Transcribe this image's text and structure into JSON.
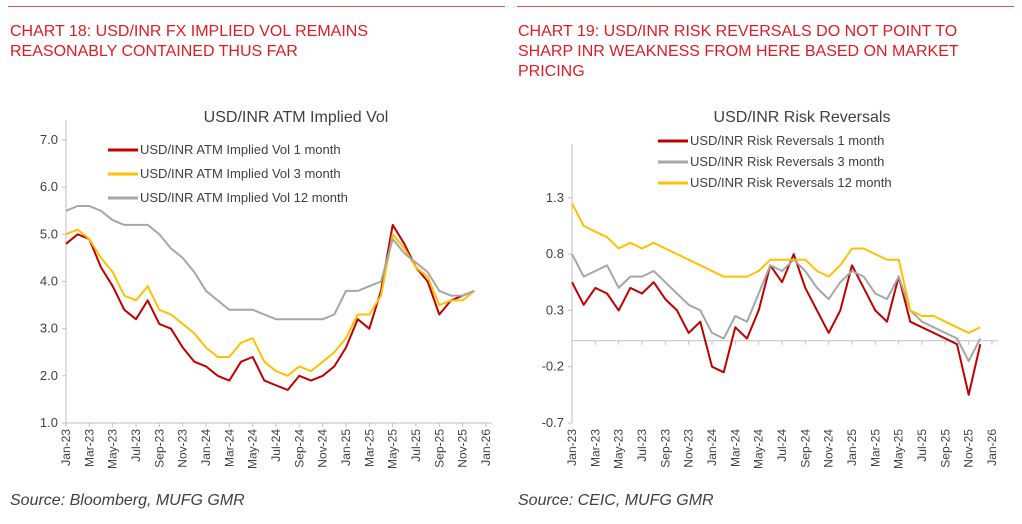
{
  "left_panel": {
    "heading": "CHART 18: USD/INR FX IMPLIED VOL REMAINS REASONABLY CONTAINED THUS FAR",
    "heading_lines": [
      "CHART 18: USD/INR FX IMPLIED VOL REMAINS",
      "REASONABLY CONTAINED THUS FAR"
    ],
    "source": "Source: Bloomberg, MUFG GMR"
  },
  "right_panel": {
    "heading": "CHART 19: USD/INR RISK REVERSALS DO NOT POINT TO SHARP INR WEAKNESS FROM HERE BASED ON MARKET PRICING",
    "heading_lines": [
      "CHART 19: USD/INR RISK REVERSALS DO NOT POINT TO",
      "SHARP INR WEAKNESS FROM HERE BASED ON MARKET",
      "PRICING"
    ],
    "source": "Source: CEIC, MUFG GMR"
  },
  "colors": {
    "heading": "#e01b24",
    "series_1m": "#c00000",
    "series_3m": "#ffc000",
    "series_12m": "#a6a6a6",
    "series_3m_rr": "#a6a6a6",
    "series_12m_rr": "#ffc000"
  },
  "chart_data": [
    {
      "type": "line",
      "title": "USD/INR ATM Implied Vol",
      "xlabel": "",
      "ylabel": "",
      "x_ticks": [
        "Jan-23",
        "Mar-23",
        "May-23",
        "Jul-23",
        "Sep-23",
        "Nov-23",
        "Jan-24",
        "Mar-24",
        "May-24",
        "Jul-24",
        "Sep-24",
        "Nov-24",
        "Jan-25",
        "Mar-25",
        "May-25",
        "Jul-25",
        "Sep-25",
        "Nov-25",
        "Jan-26"
      ],
      "y_ticks": [
        "1.0",
        "2.0",
        "3.0",
        "4.0",
        "5.0",
        "6.0",
        "7.0"
      ],
      "ylim": [
        1.0,
        7.0
      ],
      "grid": false,
      "legend_position": "top-right",
      "x": [
        "2023-01",
        "2023-02",
        "2023-03",
        "2023-04",
        "2023-05",
        "2023-06",
        "2023-07",
        "2023-08",
        "2023-09",
        "2023-10",
        "2023-11",
        "2023-12",
        "2024-01",
        "2024-02",
        "2024-03",
        "2024-04",
        "2024-05",
        "2024-06",
        "2024-07",
        "2024-08",
        "2024-09",
        "2024-10",
        "2024-11",
        "2024-12",
        "2025-01",
        "2025-02",
        "2025-03",
        "2025-04",
        "2025-05",
        "2025-06",
        "2025-07",
        "2025-08",
        "2025-09",
        "2025-10",
        "2025-11",
        "2025-12"
      ],
      "series": [
        {
          "name": "USD/INR ATM Implied Vol 1 month",
          "color": "#c00000",
          "values": [
            4.8,
            5.0,
            4.9,
            4.3,
            3.9,
            3.4,
            3.2,
            3.6,
            3.1,
            3.0,
            2.6,
            2.3,
            2.2,
            2.0,
            1.9,
            2.3,
            2.4,
            1.9,
            1.8,
            1.7,
            2.0,
            1.9,
            2.0,
            2.2,
            2.6,
            3.2,
            3.0,
            3.8,
            5.2,
            4.8,
            4.3,
            4.0,
            3.3,
            3.6,
            3.7,
            3.8
          ]
        },
        {
          "name": "USD/INR ATM Implied Vol 3 month",
          "color": "#ffc000",
          "values": [
            5.0,
            5.1,
            4.9,
            4.5,
            4.2,
            3.7,
            3.6,
            3.9,
            3.4,
            3.3,
            3.1,
            2.9,
            2.6,
            2.4,
            2.4,
            2.7,
            2.8,
            2.3,
            2.1,
            2.0,
            2.2,
            2.1,
            2.3,
            2.5,
            2.8,
            3.3,
            3.3,
            3.7,
            5.0,
            4.7,
            4.3,
            4.1,
            3.5,
            3.6,
            3.6,
            3.8
          ]
        },
        {
          "name": "USD/INR ATM Implied Vol 12 month",
          "color": "#a6a6a6",
          "values": [
            5.5,
            5.6,
            5.6,
            5.5,
            5.3,
            5.2,
            5.2,
            5.2,
            5.0,
            4.7,
            4.5,
            4.2,
            3.8,
            3.6,
            3.4,
            3.4,
            3.4,
            3.3,
            3.2,
            3.2,
            3.2,
            3.2,
            3.2,
            3.3,
            3.8,
            3.8,
            3.9,
            4.0,
            4.9,
            4.6,
            4.4,
            4.2,
            3.8,
            3.7,
            3.7,
            3.8
          ]
        }
      ]
    },
    {
      "type": "line",
      "title": "USD/INR Risk Reversals",
      "xlabel": "",
      "ylabel": "",
      "x_ticks": [
        "Jan-23",
        "Mar-23",
        "May-23",
        "Jul-23",
        "Sep-23",
        "Nov-23",
        "Jan-24",
        "Mar-24",
        "May-24",
        "Jul-24",
        "Sep-24",
        "Nov-24",
        "Jan-25",
        "Mar-25",
        "May-25",
        "Jul-25",
        "Sep-25",
        "Nov-25",
        "Jan-26"
      ],
      "y_ticks": [
        "-0.7",
        "-0.2",
        "0.3",
        "0.8",
        "1.3"
      ],
      "ylim": [
        -0.7,
        1.6
      ],
      "grid": false,
      "legend_position": "top-right",
      "x": [
        "2023-01",
        "2023-02",
        "2023-03",
        "2023-04",
        "2023-05",
        "2023-06",
        "2023-07",
        "2023-08",
        "2023-09",
        "2023-10",
        "2023-11",
        "2023-12",
        "2024-01",
        "2024-02",
        "2024-03",
        "2024-04",
        "2024-05",
        "2024-06",
        "2024-07",
        "2024-08",
        "2024-09",
        "2024-10",
        "2024-11",
        "2024-12",
        "2025-01",
        "2025-02",
        "2025-03",
        "2025-04",
        "2025-05",
        "2025-06",
        "2025-07",
        "2025-08",
        "2025-09",
        "2025-10",
        "2025-11",
        "2025-12"
      ],
      "series": [
        {
          "name": "USD/INR Risk Reversals 1 month",
          "color": "#c00000",
          "values": [
            0.55,
            0.35,
            0.5,
            0.45,
            0.3,
            0.5,
            0.45,
            0.55,
            0.4,
            0.3,
            0.1,
            0.2,
            -0.2,
            -0.25,
            0.15,
            0.05,
            0.3,
            0.7,
            0.55,
            0.8,
            0.5,
            0.3,
            0.1,
            0.3,
            0.7,
            0.5,
            0.3,
            0.2,
            0.6,
            0.2,
            0.15,
            0.1,
            0.05,
            0.0,
            -0.45,
            0.0
          ]
        },
        {
          "name": "USD/INR Risk Reversals 3 month",
          "color": "#a6a6a6",
          "values": [
            0.8,
            0.6,
            0.65,
            0.7,
            0.5,
            0.6,
            0.6,
            0.65,
            0.55,
            0.45,
            0.35,
            0.3,
            0.1,
            0.05,
            0.25,
            0.2,
            0.45,
            0.7,
            0.65,
            0.75,
            0.65,
            0.5,
            0.4,
            0.55,
            0.65,
            0.6,
            0.45,
            0.4,
            0.6,
            0.3,
            0.2,
            0.15,
            0.1,
            0.05,
            -0.15,
            0.05
          ]
        },
        {
          "name": "USD/INR Risk Reversals 12 month",
          "color": "#ffc000",
          "values": [
            1.25,
            1.05,
            1.0,
            0.95,
            0.85,
            0.9,
            0.85,
            0.9,
            0.85,
            0.8,
            0.75,
            0.7,
            0.65,
            0.6,
            0.6,
            0.6,
            0.65,
            0.75,
            0.75,
            0.75,
            0.75,
            0.65,
            0.6,
            0.7,
            0.85,
            0.85,
            0.8,
            0.75,
            0.75,
            0.3,
            0.25,
            0.25,
            0.2,
            0.15,
            0.1,
            0.15
          ]
        }
      ]
    }
  ]
}
